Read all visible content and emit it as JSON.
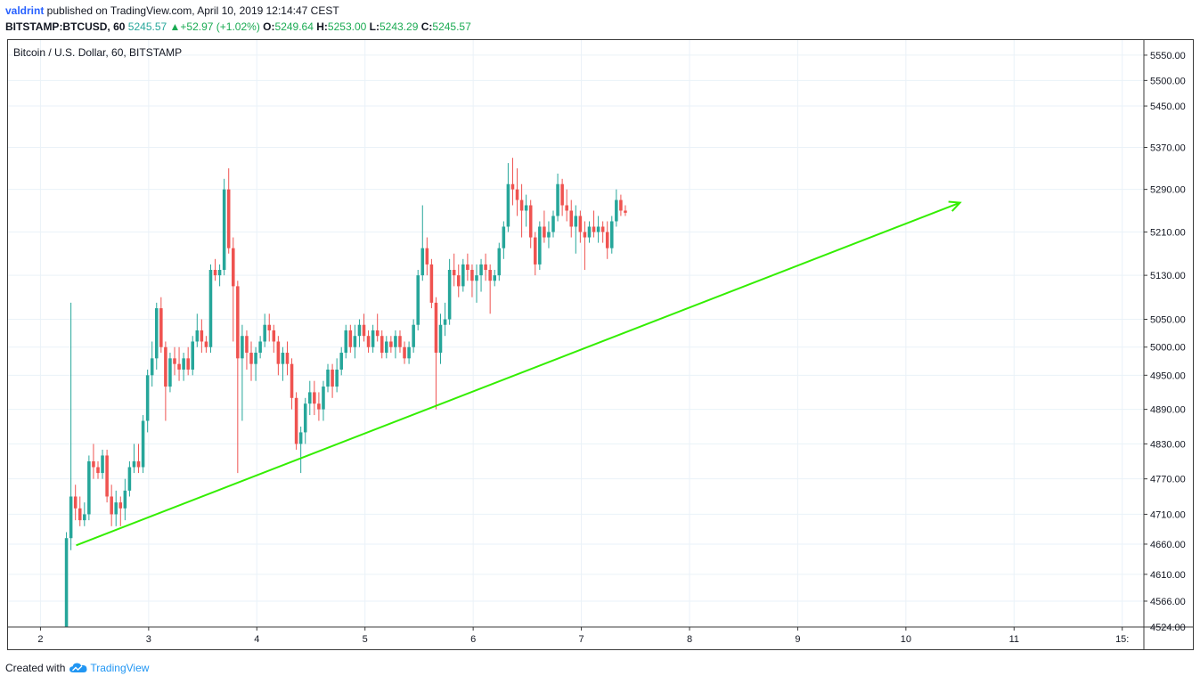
{
  "header": {
    "author": "valdrint",
    "published": " published on TradingView.com, April 10, 2019 12:14:47 CEST",
    "symbol": "BITSTAMP:BTCUSD, 60",
    "price": "5245.57",
    "change": "+52.97 (+1.02%)",
    "open_label": "O:",
    "open": "5249.64",
    "high_label": "H:",
    "high": "5253.00",
    "low_label": "L:",
    "low": "5243.29",
    "close_label": "C:",
    "close": "5245.57"
  },
  "footer": {
    "created_with": "Created with",
    "brand": "TradingView",
    "logo_icon": "tradingview-cloud-icon"
  },
  "colors": {
    "up": "#26a69a",
    "down": "#ef5350",
    "trendline": "#33ee00",
    "grid": "#eaf2f8"
  },
  "chart_data": {
    "type": "candlestick",
    "title": "Bitcoin / U.S. Dollar, 60, BITSTAMP",
    "x_ticks": [
      "2",
      "3",
      "4",
      "5",
      "6",
      "7",
      "8",
      "9",
      "10",
      "11",
      "15:"
    ],
    "x_tick_values": [
      2,
      3,
      4,
      5,
      6,
      7,
      8,
      9,
      10,
      11,
      12
    ],
    "y_ticks": [
      "5550.00",
      "5500.00",
      "5450.00",
      "5370.00",
      "5290.00",
      "5210.00",
      "5130.00",
      "5050.00",
      "5000.00",
      "4950.00",
      "4890.00",
      "4830.00",
      "4770.00",
      "4710.00",
      "4660.00",
      "4610.00",
      "4566.00",
      "4524.00"
    ],
    "y_scale": "log",
    "y_range": [
      4524,
      5580
    ],
    "x_range": [
      1.7,
      12.2
    ],
    "grid": true,
    "trendline": {
      "x": [
        2.33,
        10.5
      ],
      "y": [
        4658,
        5265
      ],
      "arrow": true
    },
    "candle_interval_days": 0.041667,
    "candles_start_x": 2.24,
    "candles_ohlc": [
      [
        4524,
        4680,
        4524,
        4670
      ],
      [
        4670,
        5080,
        4650,
        4740
      ],
      [
        4740,
        4760,
        4700,
        4720
      ],
      [
        4720,
        4740,
        4690,
        4700
      ],
      [
        4700,
        4730,
        4690,
        4710
      ],
      [
        4710,
        4810,
        4700,
        4800
      ],
      [
        4800,
        4830,
        4770,
        4790
      ],
      [
        4790,
        4800,
        4770,
        4780
      ],
      [
        4780,
        4820,
        4770,
        4810
      ],
      [
        4810,
        4820,
        4730,
        4740
      ],
      [
        4740,
        4760,
        4690,
        4710
      ],
      [
        4710,
        4750,
        4690,
        4730
      ],
      [
        4730,
        4740,
        4690,
        4720
      ],
      [
        4720,
        4770,
        4700,
        4750
      ],
      [
        4750,
        4800,
        4740,
        4790
      ],
      [
        4790,
        4830,
        4780,
        4800
      ],
      [
        4800,
        4830,
        4780,
        4790
      ],
      [
        4790,
        4880,
        4780,
        4870
      ],
      [
        4870,
        4960,
        4850,
        4950
      ],
      [
        4950,
        5010,
        4930,
        4980
      ],
      [
        4980,
        5080,
        4960,
        5070
      ],
      [
        5070,
        5090,
        4990,
        5000
      ],
      [
        5000,
        5010,
        4870,
        4930
      ],
      [
        4930,
        4990,
        4920,
        4980
      ],
      [
        4980,
        5000,
        4950,
        4970
      ],
      [
        4970,
        5000,
        4940,
        4960
      ],
      [
        4960,
        4990,
        4940,
        4980
      ],
      [
        4980,
        5000,
        4950,
        4960
      ],
      [
        4960,
        5020,
        4950,
        5010
      ],
      [
        5010,
        5060,
        5000,
        5030
      ],
      [
        5030,
        5050,
        4990,
        5010
      ],
      [
        5010,
        5020,
        4990,
        5000
      ],
      [
        5000,
        5150,
        4990,
        5140
      ],
      [
        5140,
        5160,
        5120,
        5130
      ],
      [
        5130,
        5150,
        5110,
        5140
      ],
      [
        5140,
        5310,
        5130,
        5290
      ],
      [
        5290,
        5330,
        5170,
        5180
      ],
      [
        5180,
        5200,
        5010,
        5110
      ],
      [
        5110,
        5120,
        4780,
        4980
      ],
      [
        4980,
        5040,
        4870,
        5020
      ],
      [
        5020,
        5030,
        4960,
        4990
      ],
      [
        4990,
        5010,
        4940,
        4970
      ],
      [
        4970,
        5000,
        4940,
        4990
      ],
      [
        4990,
        5020,
        4980,
        5010
      ],
      [
        5010,
        5060,
        5000,
        5040
      ],
      [
        5040,
        5060,
        5010,
        5030
      ],
      [
        5030,
        5040,
        4990,
        5010
      ],
      [
        5010,
        5020,
        4950,
        4970
      ],
      [
        4970,
        5000,
        4940,
        4990
      ],
      [
        4990,
        5010,
        4950,
        4970
      ],
      [
        4970,
        4980,
        4890,
        4910
      ],
      [
        4910,
        4920,
        4820,
        4830
      ],
      [
        4830,
        4860,
        4780,
        4850
      ],
      [
        4850,
        4910,
        4830,
        4900
      ],
      [
        4900,
        4940,
        4880,
        4920
      ],
      [
        4920,
        4940,
        4880,
        4900
      ],
      [
        4900,
        4920,
        4870,
        4890
      ],
      [
        4890,
        4940,
        4870,
        4930
      ],
      [
        4930,
        4970,
        4920,
        4960
      ],
      [
        4960,
        4970,
        4910,
        4930
      ],
      [
        4930,
        4980,
        4920,
        4960
      ],
      [
        4960,
        5000,
        4950,
        4990
      ],
      [
        4990,
        5040,
        4980,
        5030
      ],
      [
        5030,
        5040,
        4990,
        5000
      ],
      [
        5000,
        5040,
        4980,
        5020
      ],
      [
        5020,
        5050,
        5000,
        5040
      ],
      [
        5040,
        5060,
        5010,
        5020
      ],
      [
        5020,
        5030,
        4990,
        5000
      ],
      [
        5000,
        5040,
        4990,
        5030
      ],
      [
        5030,
        5060,
        5010,
        5020
      ],
      [
        5020,
        5030,
        4980,
        4990
      ],
      [
        4990,
        5020,
        4980,
        5010
      ],
      [
        5010,
        5020,
        4990,
        5000
      ],
      [
        5000,
        5030,
        4980,
        5020
      ],
      [
        5020,
        5030,
        4990,
        5000
      ],
      [
        5000,
        5010,
        4970,
        4980
      ],
      [
        4980,
        5010,
        4970,
        5000
      ],
      [
        5000,
        5050,
        4990,
        5040
      ],
      [
        5040,
        5140,
        5030,
        5130
      ],
      [
        5130,
        5260,
        5120,
        5180
      ],
      [
        5180,
        5200,
        5130,
        5150
      ],
      [
        5150,
        5160,
        5070,
        5080
      ],
      [
        5080,
        5090,
        4890,
        4990
      ],
      [
        4990,
        5060,
        4970,
        5040
      ],
      [
        5040,
        5080,
        5020,
        5050
      ],
      [
        5050,
        5160,
        5040,
        5140
      ],
      [
        5140,
        5170,
        5110,
        5130
      ],
      [
        5130,
        5150,
        5090,
        5110
      ],
      [
        5110,
        5160,
        5100,
        5150
      ],
      [
        5150,
        5170,
        5120,
        5140
      ],
      [
        5140,
        5150,
        5090,
        5120
      ],
      [
        5120,
        5150,
        5080,
        5130
      ],
      [
        5130,
        5160,
        5100,
        5150
      ],
      [
        5150,
        5170,
        5120,
        5140
      ],
      [
        5140,
        5150,
        5060,
        5120
      ],
      [
        5120,
        5140,
        5110,
        5130
      ],
      [
        5130,
        5190,
        5120,
        5180
      ],
      [
        5180,
        5230,
        5160,
        5220
      ],
      [
        5220,
        5340,
        5210,
        5300
      ],
      [
        5300,
        5350,
        5260,
        5290
      ],
      [
        5290,
        5330,
        5240,
        5270
      ],
      [
        5270,
        5300,
        5200,
        5250
      ],
      [
        5250,
        5280,
        5220,
        5260
      ],
      [
        5260,
        5270,
        5180,
        5200
      ],
      [
        5200,
        5210,
        5130,
        5150
      ],
      [
        5150,
        5230,
        5140,
        5220
      ],
      [
        5220,
        5250,
        5190,
        5200
      ],
      [
        5200,
        5230,
        5180,
        5210
      ],
      [
        5210,
        5250,
        5200,
        5240
      ],
      [
        5240,
        5320,
        5230,
        5300
      ],
      [
        5300,
        5310,
        5240,
        5260
      ],
      [
        5260,
        5290,
        5230,
        5250
      ],
      [
        5250,
        5270,
        5200,
        5220
      ],
      [
        5220,
        5260,
        5170,
        5240
      ],
      [
        5240,
        5250,
        5190,
        5210
      ],
      [
        5210,
        5230,
        5140,
        5200
      ],
      [
        5200,
        5230,
        5190,
        5220
      ],
      [
        5220,
        5250,
        5200,
        5210
      ],
      [
        5210,
        5240,
        5190,
        5220
      ],
      [
        5220,
        5230,
        5190,
        5210
      ],
      [
        5210,
        5230,
        5160,
        5180
      ],
      [
        5180,
        5240,
        5170,
        5230
      ],
      [
        5230,
        5290,
        5220,
        5270
      ],
      [
        5270,
        5280,
        5240,
        5250
      ],
      [
        5250,
        5260,
        5240,
        5246
      ]
    ]
  }
}
